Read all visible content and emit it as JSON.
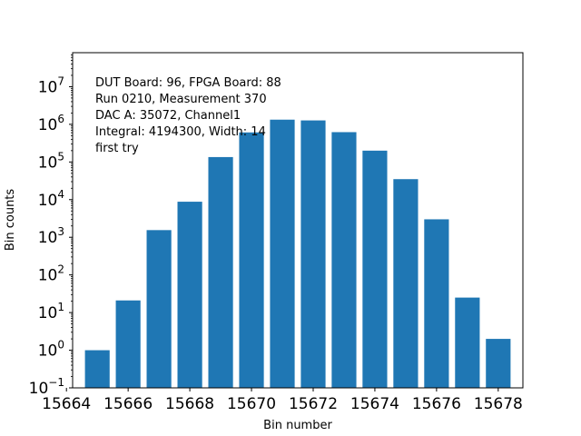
{
  "chart_data": {
    "type": "bar",
    "x": [
      15665,
      15666,
      15667,
      15668,
      15669,
      15670,
      15671,
      15672,
      15673,
      15674,
      15675,
      15676,
      15677,
      15678
    ],
    "values": [
      1,
      21,
      1550,
      8800,
      135000,
      610000,
      1330000,
      1270000,
      620000,
      200000,
      35000,
      3000,
      25,
      2
    ],
    "bar_color": "#1f77b4",
    "xlabel": "Bin number",
    "ylabel": "Bin counts",
    "xlim": [
      15664.2,
      15678.8
    ],
    "ylim": [
      0.1,
      80000000
    ],
    "yscale": "log",
    "xticks": [
      15664,
      15666,
      15668,
      15670,
      15672,
      15674,
      15676,
      15678
    ],
    "yticks": [
      {
        "value": 0.1,
        "base": "10",
        "exp": "−1"
      },
      {
        "value": 1,
        "base": "10",
        "exp": "0"
      },
      {
        "value": 10,
        "base": "10",
        "exp": "1"
      },
      {
        "value": 100,
        "base": "10",
        "exp": "2"
      },
      {
        "value": 1000,
        "base": "10",
        "exp": "3"
      },
      {
        "value": 10000,
        "base": "10",
        "exp": "4"
      },
      {
        "value": 100000,
        "base": "10",
        "exp": "5"
      },
      {
        "value": 1000000,
        "base": "10",
        "exp": "6"
      },
      {
        "value": 10000000,
        "base": "10",
        "exp": "7"
      }
    ],
    "grid": false,
    "annotation": [
      "DUT Board: 96, FPGA Board: 88",
      "Run 0210, Measurement 370",
      "DAC A: 35072, Channel1",
      "Integral: 4194300, Width: 14",
      "first try"
    ]
  }
}
